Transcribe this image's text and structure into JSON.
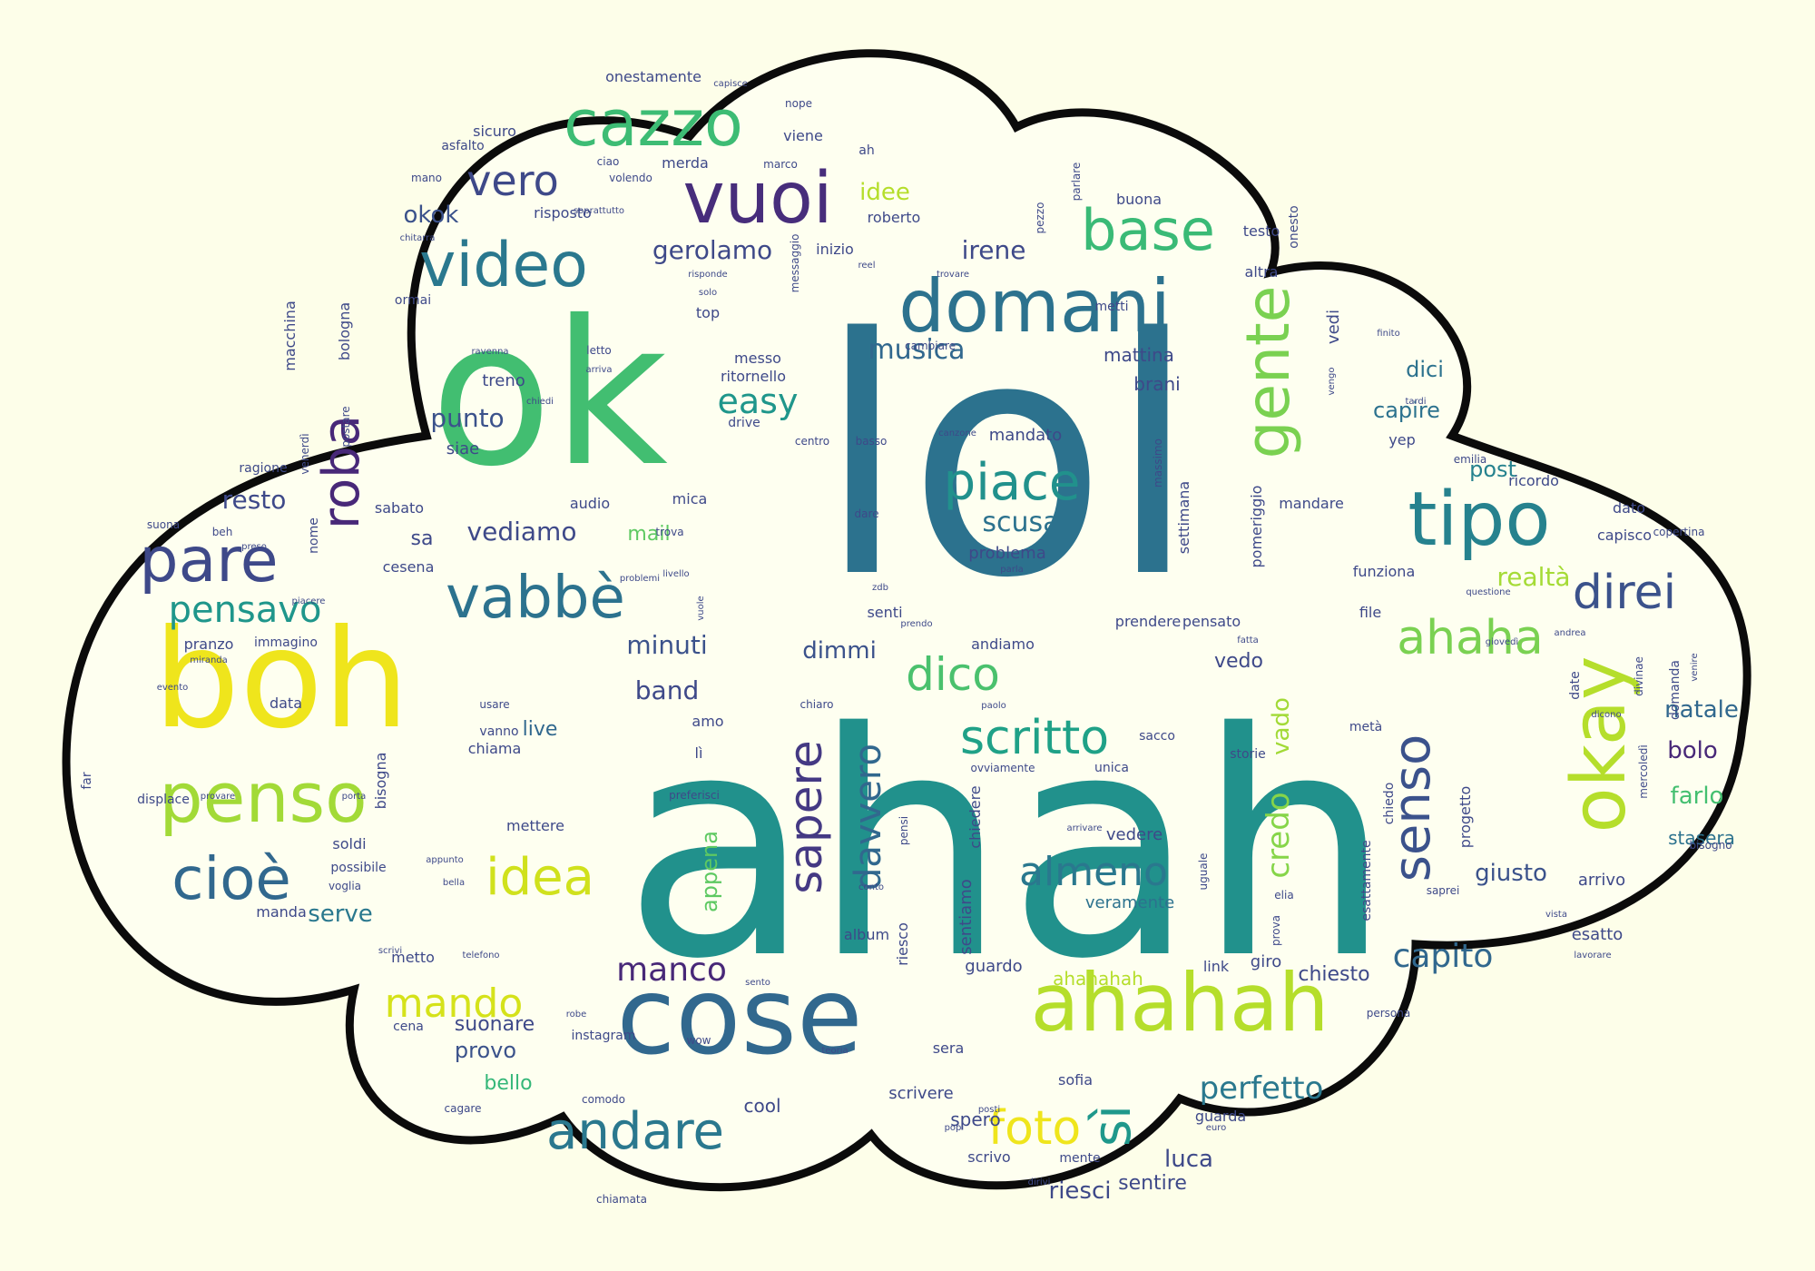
{
  "cloud": {
    "background": "#fdfee9",
    "fill": "#fefff0",
    "outline": "#0b0b0b",
    "palette": [
      "#440154",
      "#3b528b",
      "#2c728e",
      "#21918c",
      "#28ae80",
      "#5ec962",
      "#addc30",
      "#fde725"
    ],
    "words": [
      {
        "text": "ahah",
        "color": "#21918c"
      },
      {
        "text": "lol",
        "color": "#2c728e"
      },
      {
        "text": "ok",
        "color": "#42be71"
      },
      {
        "text": "boh",
        "color": "#efe51c"
      },
      {
        "text": "cose",
        "color": "#31688e"
      },
      {
        "text": "ahahah",
        "color": "#b5de2b"
      },
      {
        "text": "domani",
        "color": "#2c728e"
      },
      {
        "text": "vuoi",
        "color": "#472d7b"
      },
      {
        "text": "cazzo",
        "color": "#3dbc74"
      },
      {
        "text": "tipo",
        "color": "#26828e"
      },
      {
        "text": "gente",
        "color": "#7ad151"
      },
      {
        "text": "okay",
        "color": "#b5de2b"
      },
      {
        "text": "video",
        "color": "#2a788e"
      },
      {
        "text": "vabbè",
        "color": "#2c728e"
      },
      {
        "text": "penso",
        "color": "#a2da37"
      },
      {
        "text": "pare",
        "color": "#3e4989"
      },
      {
        "text": "cioè",
        "color": "#31688e"
      },
      {
        "text": "base",
        "color": "#3aba76"
      },
      {
        "text": "roba",
        "color": "#482878"
      },
      {
        "text": "piace",
        "color": "#21918c"
      },
      {
        "text": "andare",
        "color": "#2a788e"
      },
      {
        "text": "scritto",
        "color": "#1fa187"
      },
      {
        "text": "senso",
        "color": "#3b528b"
      },
      {
        "text": "sapere",
        "color": "#443983"
      },
      {
        "text": "ahaha",
        "color": "#7ad151"
      },
      {
        "text": "foto",
        "color": "#efe51c"
      },
      {
        "text": "sì",
        "color": "#1f988b"
      },
      {
        "text": "idea",
        "color": "#d0e11c"
      },
      {
        "text": "mando",
        "color": "#d5e21a"
      },
      {
        "text": "dico",
        "color": "#4ac16d"
      },
      {
        "text": "pensavo",
        "color": "#1f968b"
      },
      {
        "text": "direi",
        "color": "#3b528b"
      },
      {
        "text": "almeno",
        "color": "#2a788e"
      },
      {
        "text": "vero",
        "color": "#3e4989"
      },
      {
        "text": "davvero",
        "color": "#31688e"
      },
      {
        "text": "capito",
        "color": "#31688e"
      },
      {
        "text": "manco",
        "color": "#482878"
      },
      {
        "text": "perfetto",
        "color": "#2a788e"
      },
      {
        "text": "musica",
        "color": "#31688e"
      },
      {
        "text": "scusa",
        "color": "#2c728e"
      },
      {
        "text": "easy",
        "color": "#1f968b"
      },
      {
        "text": "credo",
        "color": "#86d549"
      },
      {
        "text": "realtà",
        "color": "#a5db36"
      },
      {
        "text": "gerolamo",
        "color": "#3e4989"
      },
      {
        "text": "irene",
        "color": "#3e4989"
      },
      {
        "text": "vediamo",
        "color": "#3e4989"
      },
      {
        "text": "resto",
        "color": "#3e4989"
      },
      {
        "text": "punto",
        "color": "#3b528b"
      },
      {
        "text": "minuti",
        "color": "#3b528b"
      },
      {
        "text": "band",
        "color": "#3e4989"
      },
      {
        "text": "dimmi",
        "color": "#3b528b"
      },
      {
        "text": "vado",
        "color": "#a2da37"
      },
      {
        "text": "riesci",
        "color": "#3e4989"
      },
      {
        "text": "luca",
        "color": "#3e4989"
      },
      {
        "text": "natale",
        "color": "#31688e"
      },
      {
        "text": "farlo",
        "color": "#44bf70"
      },
      {
        "text": "giusto",
        "color": "#3b528b"
      },
      {
        "text": "bolo",
        "color": "#482878"
      },
      {
        "text": "serve",
        "color": "#2a788e"
      },
      {
        "text": "okok",
        "color": "#3b528b"
      },
      {
        "text": "post",
        "color": "#26828e"
      },
      {
        "text": "capire",
        "color": "#2c728e"
      },
      {
        "text": "dici",
        "color": "#2c728e"
      },
      {
        "text": "provo",
        "color": "#3b528b"
      },
      {
        "text": "bello",
        "color": "#35b779"
      },
      {
        "text": "suonare",
        "color": "#3e4989"
      },
      {
        "text": "chiesto",
        "color": "#3e4989"
      },
      {
        "text": "sentire",
        "color": "#3e4989"
      },
      {
        "text": "vedo",
        "color": "#3e4989"
      },
      {
        "text": "live",
        "color": "#31688e"
      },
      {
        "text": "sa",
        "color": "#3e4989"
      },
      {
        "text": "mail",
        "color": "#5ec962"
      },
      {
        "text": "ahahahah",
        "color": "#b5de2b"
      },
      {
        "text": "idee",
        "color": "#b5de2b"
      },
      {
        "text": "brani",
        "color": "#3e4989"
      },
      {
        "text": "mattina",
        "color": "#3e4989"
      },
      {
        "text": "cool",
        "color": "#3e4989"
      },
      {
        "text": "spero",
        "color": "#3e4989"
      },
      {
        "text": "appena",
        "color": "#5ec962"
      },
      {
        "text": "stasera",
        "color": "#2c728e"
      },
      {
        "text": "arrivo",
        "color": "#3e4989"
      },
      {
        "text": "esatto",
        "color": "#3e4989"
      },
      {
        "text": "sentiamo",
        "color": "#3e4989"
      },
      {
        "text": "veramente",
        "color": "#2c728e"
      },
      {
        "text": "vedere",
        "color": "#3e4989"
      },
      {
        "text": "mandato",
        "color": "#3e4989"
      },
      {
        "text": "problema",
        "color": "#3e4989"
      },
      {
        "text": "treno",
        "color": "#3e4989"
      },
      {
        "text": "siae",
        "color": "#3e4989"
      },
      {
        "text": "ritornello",
        "color": "#3e4989"
      },
      {
        "text": "messo",
        "color": "#3e4989"
      },
      {
        "text": "top",
        "color": "#3e4989"
      },
      {
        "text": "inizio",
        "color": "#3e4989"
      },
      {
        "text": "roberto",
        "color": "#3e4989"
      },
      {
        "text": "risposto",
        "color": "#3e4989"
      },
      {
        "text": "merda",
        "color": "#3e4989"
      },
      {
        "text": "sicuro",
        "color": "#3e4989"
      },
      {
        "text": "onestamente",
        "color": "#3e4989"
      },
      {
        "text": "viene",
        "color": "#3e4989"
      },
      {
        "text": "buona",
        "color": "#3e4989"
      },
      {
        "text": "testo",
        "color": "#3e4989"
      },
      {
        "text": "altra",
        "color": "#3e4989"
      },
      {
        "text": "vedi",
        "color": "#3e4989"
      },
      {
        "text": "yep",
        "color": "#3e4989"
      },
      {
        "text": "ricordo",
        "color": "#3e4989"
      },
      {
        "text": "mandare",
        "color": "#3e4989"
      },
      {
        "text": "dato",
        "color": "#3e4989"
      },
      {
        "text": "capisco",
        "color": "#3e4989"
      },
      {
        "text": "funziona",
        "color": "#3e4989"
      },
      {
        "text": "file",
        "color": "#3e4989"
      },
      {
        "text": "pomeriggio",
        "color": "#3e4989"
      },
      {
        "text": "settimana",
        "color": "#3e4989"
      },
      {
        "text": "prendere",
        "color": "#3e4989"
      },
      {
        "text": "pensato",
        "color": "#3e4989"
      },
      {
        "text": "andiamo",
        "color": "#3e4989"
      },
      {
        "text": "senti",
        "color": "#3e4989"
      },
      {
        "text": "audio",
        "color": "#3e4989"
      },
      {
        "text": "mica",
        "color": "#3e4989"
      },
      {
        "text": "sabato",
        "color": "#3e4989"
      },
      {
        "text": "cesena",
        "color": "#3e4989"
      },
      {
        "text": "pranzo",
        "color": "#3e4989"
      },
      {
        "text": "data",
        "color": "#3e4989"
      },
      {
        "text": "bisogna",
        "color": "#3e4989"
      },
      {
        "text": "chiama",
        "color": "#3e4989"
      },
      {
        "text": "vanno",
        "color": "#3e4989"
      },
      {
        "text": "soldi",
        "color": "#3e4989"
      },
      {
        "text": "possibile",
        "color": "#3e4989"
      },
      {
        "text": "manda",
        "color": "#3e4989"
      },
      {
        "text": "metto",
        "color": "#3e4989"
      },
      {
        "text": "cena",
        "color": "#3e4989"
      },
      {
        "text": "instagram",
        "color": "#3e4989"
      },
      {
        "text": "wow",
        "color": "#3e4989"
      },
      {
        "text": "comodo",
        "color": "#3e4989"
      },
      {
        "text": "cagare",
        "color": "#3e4989"
      },
      {
        "text": "chiamata",
        "color": "#3e4989"
      },
      {
        "text": "scrivere",
        "color": "#3e4989"
      },
      {
        "text": "scrivo",
        "color": "#3e4989"
      },
      {
        "text": "mente",
        "color": "#3e4989"
      },
      {
        "text": "sofia",
        "color": "#3e4989"
      },
      {
        "text": "sera",
        "color": "#3e4989"
      },
      {
        "text": "guardo",
        "color": "#3e4989"
      },
      {
        "text": "link",
        "color": "#3e4989"
      },
      {
        "text": "giro",
        "color": "#3e4989"
      },
      {
        "text": "guarda",
        "color": "#3e4989"
      },
      {
        "text": "album",
        "color": "#3e4989"
      },
      {
        "text": "riesco",
        "color": "#3e4989"
      },
      {
        "text": "mettere",
        "color": "#3e4989"
      },
      {
        "text": "amo",
        "color": "#3e4989"
      },
      {
        "text": "lì",
        "color": "#3e4989"
      },
      {
        "text": "sacco",
        "color": "#3e4989"
      },
      {
        "text": "unica",
        "color": "#3e4989"
      },
      {
        "text": "storie",
        "color": "#3e4989"
      },
      {
        "text": "chiedere",
        "color": "#3e4989"
      },
      {
        "text": "progetto",
        "color": "#3e4989"
      },
      {
        "text": "chiedo",
        "color": "#3e4989"
      },
      {
        "text": "esattamente",
        "color": "#3e4989"
      },
      {
        "text": "metà",
        "color": "#3e4989"
      },
      {
        "text": "domanda",
        "color": "#3e4989"
      },
      {
        "text": "date",
        "color": "#3e4989"
      },
      {
        "text": "bisogno",
        "color": "#3e4989"
      },
      {
        "text": "mercoledì",
        "color": "#3e4989"
      },
      {
        "text": "macchina",
        "color": "#3e4989"
      },
      {
        "text": "bologna",
        "color": "#3e4989"
      },
      {
        "text": "ormai",
        "color": "#3e4989"
      },
      {
        "text": "asfalto",
        "color": "#3e4989"
      },
      {
        "text": "ciao",
        "color": "#3e4989"
      },
      {
        "text": "nope",
        "color": "#3e4989"
      },
      {
        "text": "capisce",
        "color": "#3e4989"
      },
      {
        "text": "marco",
        "color": "#3e4989"
      },
      {
        "text": "ah",
        "color": "#3e4989"
      },
      {
        "text": "volendo",
        "color": "#3e4989"
      },
      {
        "text": "soprattutto",
        "color": "#3e4989"
      },
      {
        "text": "mano",
        "color": "#3e4989"
      },
      {
        "text": "chitarra",
        "color": "#3e4989"
      },
      {
        "text": "risponde",
        "color": "#3e4989"
      },
      {
        "text": "letto",
        "color": "#3e4989"
      },
      {
        "text": "solo",
        "color": "#3e4989"
      },
      {
        "text": "messaggio",
        "color": "#3e4989"
      },
      {
        "text": "reel",
        "color": "#3e4989"
      },
      {
        "text": "trovare",
        "color": "#3e4989"
      },
      {
        "text": "pezzo",
        "color": "#3e4989"
      },
      {
        "text": "parlare",
        "color": "#3e4989"
      },
      {
        "text": "metti",
        "color": "#3e4989"
      },
      {
        "text": "onesto",
        "color": "#3e4989"
      },
      {
        "text": "emilia",
        "color": "#3e4989"
      },
      {
        "text": "finito",
        "color": "#3e4989"
      },
      {
        "text": "vengo",
        "color": "#3e4989"
      },
      {
        "text": "arriva",
        "color": "#3e4989"
      },
      {
        "text": "ravenna",
        "color": "#3e4989"
      },
      {
        "text": "chiedi",
        "color": "#3e4989"
      },
      {
        "text": "postare",
        "color": "#3e4989"
      },
      {
        "text": "drive",
        "color": "#3e4989"
      },
      {
        "text": "centro",
        "color": "#3e4989"
      },
      {
        "text": "basso",
        "color": "#3e4989"
      },
      {
        "text": "dare",
        "color": "#3e4989"
      },
      {
        "text": "cambiare",
        "color": "#3e4989"
      },
      {
        "text": "massimo",
        "color": "#3e4989"
      },
      {
        "text": "canzone",
        "color": "#3e4989"
      },
      {
        "text": "tardi",
        "color": "#3e4989"
      },
      {
        "text": "parla",
        "color": "#3e4989"
      },
      {
        "text": "trova",
        "color": "#3e4989"
      },
      {
        "text": "vuole",
        "color": "#3e4989"
      },
      {
        "text": "problemi",
        "color": "#3e4989"
      },
      {
        "text": "zdb",
        "color": "#3e4989"
      },
      {
        "text": "prendo",
        "color": "#3e4989"
      },
      {
        "text": "fatta",
        "color": "#3e4989"
      },
      {
        "text": "questione",
        "color": "#3e4989"
      },
      {
        "text": "andrea",
        "color": "#3e4989"
      },
      {
        "text": "copertina",
        "color": "#3e4989"
      },
      {
        "text": "giovedì",
        "color": "#3e4989"
      },
      {
        "text": "dicono",
        "color": "#3e4989"
      },
      {
        "text": "divinae",
        "color": "#3e4989"
      },
      {
        "text": "venire",
        "color": "#3e4989"
      },
      {
        "text": "ragione",
        "color": "#3e4989"
      },
      {
        "text": "nome",
        "color": "#3e4989"
      },
      {
        "text": "venerdì",
        "color": "#3e4989"
      },
      {
        "text": "beh",
        "color": "#3e4989"
      },
      {
        "text": "suona",
        "color": "#3e4989"
      },
      {
        "text": "preso",
        "color": "#3e4989"
      },
      {
        "text": "piacere",
        "color": "#3e4989"
      },
      {
        "text": "immagino",
        "color": "#3e4989"
      },
      {
        "text": "miranda",
        "color": "#3e4989"
      },
      {
        "text": "evento",
        "color": "#3e4989"
      },
      {
        "text": "far",
        "color": "#3e4989"
      },
      {
        "text": "displace",
        "color": "#3e4989"
      },
      {
        "text": "provare",
        "color": "#3e4989"
      },
      {
        "text": "porta",
        "color": "#3e4989"
      },
      {
        "text": "appunto",
        "color": "#3e4989"
      },
      {
        "text": "bella",
        "color": "#3e4989"
      },
      {
        "text": "voglia",
        "color": "#3e4989"
      },
      {
        "text": "scrivi",
        "color": "#3e4989"
      },
      {
        "text": "telefono",
        "color": "#3e4989"
      },
      {
        "text": "robe",
        "color": "#3e4989"
      },
      {
        "text": "usare",
        "color": "#3e4989"
      },
      {
        "text": "chiaro",
        "color": "#3e4989"
      },
      {
        "text": "preferisci",
        "color": "#3e4989"
      },
      {
        "text": "pensi",
        "color": "#3e4989"
      },
      {
        "text": "ovviamente",
        "color": "#3e4989"
      },
      {
        "text": "paolo",
        "color": "#3e4989"
      },
      {
        "text": "arrivare",
        "color": "#3e4989"
      },
      {
        "text": "uguale",
        "color": "#3e4989"
      },
      {
        "text": "conto",
        "color": "#3e4989"
      },
      {
        "text": "elia",
        "color": "#3e4989"
      },
      {
        "text": "prova",
        "color": "#3e4989"
      },
      {
        "text": "saprei",
        "color": "#3e4989"
      },
      {
        "text": "sento",
        "color": "#3e4989"
      },
      {
        "text": "teoria",
        "color": "#3e4989"
      },
      {
        "text": "persona",
        "color": "#3e4989"
      },
      {
        "text": "lavorare",
        "color": "#3e4989"
      },
      {
        "text": "vista",
        "color": "#3e4989"
      },
      {
        "text": "pop",
        "color": "#3e4989"
      },
      {
        "text": "dirivi",
        "color": "#3e4989"
      },
      {
        "text": "euro",
        "color": "#3e4989"
      },
      {
        "text": "posti",
        "color": "#3e4989"
      },
      {
        "text": "livello",
        "color": "#3e4989"
      },
      {
        "text": "problem",
        "color": "#3e4989"
      }
    ]
  }
}
